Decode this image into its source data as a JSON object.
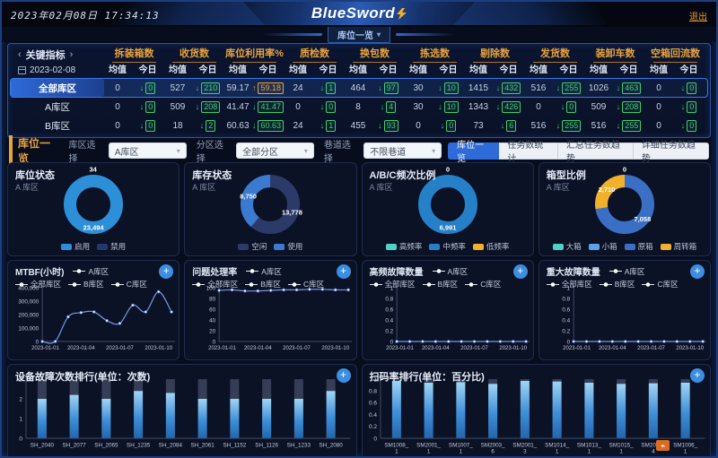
{
  "icons": {
    "prev": "‹",
    "next": "›",
    "caret": "▾",
    "plus": "+",
    "arrow_up": "↑",
    "arrow_down": "↓",
    "watermark": "⌁"
  },
  "header": {
    "datetime": "2023年02月08日 17:34:13",
    "logo": "BlueSword",
    "logout_label": "退出",
    "nav_dropdown": "库位一览"
  },
  "kpi_table": {
    "left_title": "关键指标",
    "date": "2023-02-08",
    "subcols": [
      "均值",
      "今日"
    ],
    "columns": [
      "拆装箱数",
      "收货数",
      "库位利用率%",
      "质检数",
      "换包数",
      "拣选数",
      "剔除数",
      "发货数",
      "装卸车数",
      "空箱回流数"
    ],
    "rows": [
      {
        "name": "全部库区",
        "active": true,
        "cells": [
          {
            "avg": "0",
            "today": "0",
            "dir": "down"
          },
          {
            "avg": "527",
            "today": "210",
            "dir": "down"
          },
          {
            "avg": "59.17",
            "today": "59.18",
            "dir": "up"
          },
          {
            "avg": "24",
            "today": "1",
            "dir": "down"
          },
          {
            "avg": "464",
            "today": "97",
            "dir": "down"
          },
          {
            "avg": "30",
            "today": "10",
            "dir": "down"
          },
          {
            "avg": "1415",
            "today": "432",
            "dir": "down"
          },
          {
            "avg": "516",
            "today": "255",
            "dir": "down"
          },
          {
            "avg": "1026",
            "today": "463",
            "dir": "down"
          },
          {
            "avg": "0",
            "today": "0",
            "dir": "down"
          }
        ]
      },
      {
        "name": "A库区",
        "active": false,
        "cells": [
          {
            "avg": "0",
            "today": "0",
            "dir": "down"
          },
          {
            "avg": "509",
            "today": "208",
            "dir": "down"
          },
          {
            "avg": "41.47",
            "today": "41.47",
            "dir": "down"
          },
          {
            "avg": "0",
            "today": "0",
            "dir": "down"
          },
          {
            "avg": "8",
            "today": "4",
            "dir": "down"
          },
          {
            "avg": "30",
            "today": "10",
            "dir": "down"
          },
          {
            "avg": "1343",
            "today": "426",
            "dir": "down"
          },
          {
            "avg": "0",
            "today": "0",
            "dir": "down"
          },
          {
            "avg": "509",
            "today": "208",
            "dir": "down"
          },
          {
            "avg": "0",
            "today": "0",
            "dir": "down"
          }
        ]
      },
      {
        "name": "B库区",
        "active": false,
        "cells": [
          {
            "avg": "0",
            "today": "0",
            "dir": "down"
          },
          {
            "avg": "18",
            "today": "2",
            "dir": "down"
          },
          {
            "avg": "60.63",
            "today": "60.63",
            "dir": "down"
          },
          {
            "avg": "24",
            "today": "1",
            "dir": "down"
          },
          {
            "avg": "455",
            "today": "93",
            "dir": "down"
          },
          {
            "avg": "0",
            "today": "0",
            "dir": "down"
          },
          {
            "avg": "73",
            "today": "6",
            "dir": "down"
          },
          {
            "avg": "516",
            "today": "255",
            "dir": "down"
          },
          {
            "avg": "516",
            "today": "255",
            "dir": "down"
          },
          {
            "avg": "0",
            "today": "0",
            "dir": "down"
          }
        ]
      }
    ]
  },
  "filter_bar": {
    "title": "库位一览",
    "filters": [
      {
        "label": "库区选择",
        "value": "A库区"
      },
      {
        "label": "分区选择",
        "value": "全部分区"
      },
      {
        "label": "巷道选择",
        "value": "不限巷道"
      }
    ],
    "tabs": [
      {
        "label": "库位一览",
        "active": true
      },
      {
        "label": "任务数统计",
        "active": false
      },
      {
        "label": "汇总任务数趋势",
        "active": false
      },
      {
        "label": "详细任务数趋势",
        "active": false
      }
    ]
  },
  "chart_data": [
    {
      "id": "loc-status",
      "type": "pie",
      "title": "库位状态",
      "subtitle": "A 库区",
      "slices": [
        {
          "label": "启用",
          "value": 23494,
          "color": "#2d8fd8",
          "show_value": true
        },
        {
          "label": "禁用",
          "value": 34,
          "color": "#24386b",
          "show_value": true
        }
      ]
    },
    {
      "id": "inv-status",
      "type": "pie",
      "title": "库存状态",
      "subtitle": "A 库区",
      "slices": [
        {
          "label": "空闲",
          "value": 13778,
          "color": "#2c3a6a",
          "show_value": true
        },
        {
          "label": "使用",
          "value": 8750,
          "color": "#3b7ad0",
          "show_value": true
        }
      ]
    },
    {
      "id": "abc-ratio",
      "type": "pie",
      "title": "A/B/C频次比例",
      "subtitle": "A 库区",
      "slices": [
        {
          "label": "高频率",
          "value": 0,
          "color": "#4fd1c5",
          "show_value": true
        },
        {
          "label": "中频率",
          "value": 6991,
          "color": "#2580c8",
          "show_value": true
        },
        {
          "label": "低频率",
          "value": 0,
          "color": "#f2b02c",
          "show_value": false
        }
      ]
    },
    {
      "id": "box-ratio",
      "type": "pie",
      "title": "箱型比例",
      "subtitle": "A 库区",
      "slices": [
        {
          "label": "大箱",
          "value": 0,
          "color": "#4fd1c5",
          "show_value": true
        },
        {
          "label": "小箱",
          "value": 0,
          "color": "#5ba3e8",
          "show_value": false
        },
        {
          "label": "原箱",
          "value": 7058,
          "color": "#3b6fc4",
          "show_value": true
        },
        {
          "label": "周转箱",
          "value": 2710,
          "color": "#f2b02c",
          "show_value": true
        }
      ]
    },
    {
      "id": "mtbf",
      "type": "line",
      "title": "MTBF(小时)",
      "legend": [
        "A库区",
        "全部库区",
        "B库区",
        "C库区"
      ],
      "x": [
        "2023-01-01",
        "2023-01-02",
        "2023-01-03",
        "2023-01-04",
        "2023-01-05",
        "2023-01-06",
        "2023-01-07",
        "2023-01-08",
        "2023-01-09",
        "2023-01-10",
        "2023-01-11"
      ],
      "xticks": [
        {
          "index": 0,
          "label": "2023-01-01"
        },
        {
          "index": 3,
          "label": "2023-01-04"
        },
        {
          "index": 6,
          "label": "2023-01-07"
        },
        {
          "index": 9,
          "label": "2023-01-10"
        }
      ],
      "ylim": [
        0,
        400000
      ],
      "yticks": [
        0,
        100000,
        200000,
        300000,
        400000
      ],
      "series": [
        {
          "name": "A库区",
          "values": [
            0,
            0,
            183000,
            215000,
            220000,
            155000,
            135000,
            270000,
            220000,
            370000,
            220000
          ]
        }
      ]
    },
    {
      "id": "issue-rate",
      "type": "line",
      "title": "问题处理率",
      "legend": [
        "A库区",
        "全部库区",
        "B库区",
        "C库区"
      ],
      "x": [
        "2023-01-01",
        "2023-01-02",
        "2023-01-03",
        "2023-01-04",
        "2023-01-05",
        "2023-01-06",
        "2023-01-07",
        "2023-01-08",
        "2023-01-09",
        "2023-01-10",
        "2023-01-11"
      ],
      "xticks": [
        {
          "index": 0,
          "label": "2023-01-01"
        },
        {
          "index": 3,
          "label": "2023-01-04"
        },
        {
          "index": 6,
          "label": "2023-01-07"
        },
        {
          "index": 9,
          "label": "2023-01-10"
        }
      ],
      "ylim": [
        0,
        100
      ],
      "yticks": [
        0,
        20,
        40,
        60,
        80,
        100
      ],
      "series": [
        {
          "name": "A库区",
          "values": [
            95,
            96,
            94,
            94,
            95,
            96,
            96,
            97,
            97,
            96,
            96
          ]
        }
      ]
    },
    {
      "id": "hifreq-fault",
      "type": "line",
      "title": "高频故障数量",
      "legend": [
        "A库区",
        "全部库区",
        "B库区",
        "C库区"
      ],
      "x": [
        "2023-01-01",
        "2023-01-02",
        "2023-01-03",
        "2023-01-04",
        "2023-01-05",
        "2023-01-06",
        "2023-01-07",
        "2023-01-08",
        "2023-01-09",
        "2023-01-10",
        "2023-01-11"
      ],
      "xticks": [
        {
          "index": 0,
          "label": "2023-01-01"
        },
        {
          "index": 3,
          "label": "2023-01-04"
        },
        {
          "index": 6,
          "label": "2023-01-07"
        },
        {
          "index": 9,
          "label": "2023-01-10"
        }
      ],
      "ylim": [
        0,
        1
      ],
      "yticks": [
        0,
        0.2,
        0.4,
        0.6,
        0.8,
        1
      ],
      "series": [
        {
          "name": "A库区",
          "values": [
            0,
            0,
            0,
            0,
            0,
            0,
            0,
            0,
            0,
            0,
            0
          ]
        }
      ]
    },
    {
      "id": "major-fault",
      "type": "line",
      "title": "重大故障数量",
      "legend": [
        "A库区",
        "全部库区",
        "B库区",
        "C库区"
      ],
      "x": [
        "2023-01-01",
        "2023-01-02",
        "2023-01-03",
        "2023-01-04",
        "2023-01-05",
        "2023-01-06",
        "2023-01-07",
        "2023-01-08",
        "2023-01-09",
        "2023-01-10",
        "2023-01-11"
      ],
      "xticks": [
        {
          "index": 0,
          "label": "2023-01-01"
        },
        {
          "index": 3,
          "label": "2023-01-04"
        },
        {
          "index": 6,
          "label": "2023-01-07"
        },
        {
          "index": 9,
          "label": "2023-01-10"
        }
      ],
      "ylim": [
        0,
        1
      ],
      "yticks": [
        0,
        0.2,
        0.4,
        0.6,
        0.8,
        1
      ],
      "series": [
        {
          "name": "A库区",
          "values": [
            0,
            0,
            0,
            0,
            0,
            0,
            0,
            0,
            0,
            0,
            0
          ]
        }
      ]
    },
    {
      "id": "fault-rank",
      "type": "bar",
      "title": "设备故障次数排行(单位：次数)",
      "categories": [
        "SH_2040",
        "SH_2077",
        "SH_2065",
        "SH_1235",
        "SH_2084",
        "SH_2061",
        "SH_1152",
        "SH_1126",
        "SH_1233",
        "SH_2080"
      ],
      "values": [
        2,
        2.2,
        2,
        2.4,
        2.3,
        2,
        2,
        2,
        2,
        2.4
      ],
      "ylim": [
        0,
        3
      ],
      "yticks": [
        0,
        1,
        2,
        3
      ],
      "label_two_line": false
    },
    {
      "id": "scan-rank",
      "type": "bar",
      "title": "扫码率排行(单位：百分比)",
      "categories": [
        "SM1008_1",
        "SM2001_1",
        "SM1007_1",
        "SM2003_6",
        "SM2001_3",
        "SM1014_1",
        "SM1013_1",
        "SM1015_1",
        "SM2001_4",
        "SM1006_1"
      ],
      "values": [
        0.97,
        0.94,
        0.95,
        0.92,
        0.97,
        0.96,
        0.94,
        0.92,
        0.93,
        0.94
      ],
      "ylim": [
        0,
        1
      ],
      "yticks": [
        0,
        0.2,
        0.4,
        0.6,
        0.8,
        1
      ],
      "label_two_line": true
    }
  ]
}
